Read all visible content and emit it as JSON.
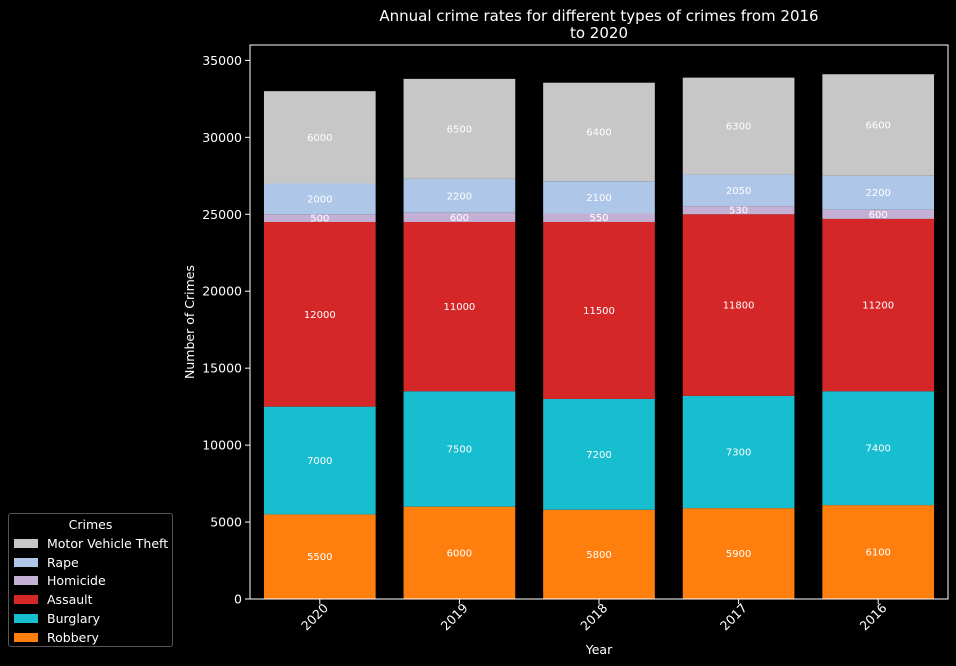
{
  "chart_data": {
    "type": "bar",
    "stacked": true,
    "title": "Annual crime rates for different types of crimes from 2016 to 2020",
    "title_lines": [
      "Annual crime rates for different types of crimes from 2016",
      "to 2020"
    ],
    "xlabel": "Year",
    "ylabel": "Number of Crimes",
    "categories": [
      "2020",
      "2019",
      "2018",
      "2017",
      "2016"
    ],
    "ylim": [
      0,
      36000
    ],
    "yticks": [
      0,
      5000,
      10000,
      15000,
      20000,
      25000,
      30000,
      35000
    ],
    "grid": false,
    "legend_title": "Crimes",
    "legend_placement": "bottom-left outside",
    "series": [
      {
        "name": "Robbery",
        "color": "#ff7f0e",
        "values": [
          5500,
          6000,
          5800,
          5900,
          6100
        ]
      },
      {
        "name": "Burglary",
        "color": "#17becf",
        "values": [
          7000,
          7500,
          7200,
          7300,
          7400
        ]
      },
      {
        "name": "Assault",
        "color": "#d62728",
        "values": [
          12000,
          11000,
          11500,
          11800,
          11200
        ]
      },
      {
        "name": "Homicide",
        "color": "#c5b0d5",
        "values": [
          500,
          600,
          550,
          530,
          600
        ]
      },
      {
        "name": "Rape",
        "color": "#aec7e8",
        "values": [
          2000,
          2200,
          2100,
          2050,
          2200
        ]
      },
      {
        "name": "Motor Vehicle Theft",
        "color": "#c7c7c7",
        "values": [
          6000,
          6500,
          6400,
          6300,
          6600
        ]
      }
    ]
  }
}
